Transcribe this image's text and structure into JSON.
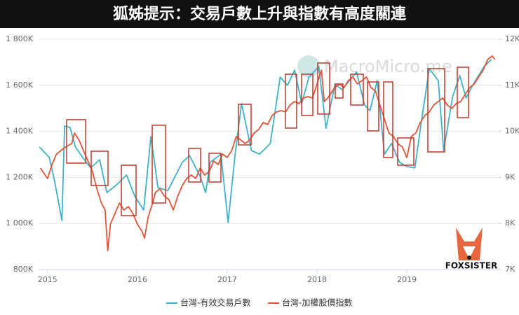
{
  "chart_data": {
    "type": "line",
    "title": "狐姊提示：交易戶數上升與指數有高度關連",
    "watermark": "MacroMicro.me",
    "logo_text": "FOXSISTER",
    "xlim": [
      2014.9,
      2020.03
    ],
    "xticks": [
      2015,
      2016,
      2017,
      2018,
      2019
    ],
    "ylim": [
      800000,
      1800000
    ],
    "yticks": [
      {
        "value": 800000,
        "label": "800K"
      },
      {
        "value": 1000000,
        "label": "1 000K"
      },
      {
        "value": 1200000,
        "label": "1 200K"
      },
      {
        "value": 1400000,
        "label": "1 400K"
      },
      {
        "value": 1600000,
        "label": "1 600K"
      },
      {
        "value": 1800000,
        "label": "1 800K"
      }
    ],
    "y2lim": [
      7000,
      12000
    ],
    "y2ticks": [
      {
        "value": 7000,
        "label": "7K"
      },
      {
        "value": 8000,
        "label": "8K"
      },
      {
        "value": 9000,
        "label": "9K"
      },
      {
        "value": 10000,
        "label": "10K"
      },
      {
        "value": 11000,
        "label": "11K"
      },
      {
        "value": 12000,
        "label": "12K"
      }
    ],
    "grid": true,
    "legend": "bottom",
    "series": [
      {
        "name": "台灣-有效交易戶數",
        "color": "#3fb1c8",
        "x": [
          2014.91,
          2015.02,
          2015.08,
          2015.16,
          2015.19,
          2015.25,
          2015.31,
          2015.41,
          2015.48,
          2015.58,
          2015.66,
          2015.76,
          2015.88,
          2015.97,
          2016.07,
          2016.15,
          2016.23,
          2016.34,
          2016.5,
          2016.58,
          2016.7,
          2016.76,
          2016.81,
          2016.93,
          2017.01,
          2017.09,
          2017.16,
          2017.27,
          2017.36,
          2017.48,
          2017.59,
          2017.67,
          2017.75,
          2017.83,
          2017.91,
          2018.02,
          2018.1,
          2018.2,
          2018.28,
          2018.36,
          2018.44,
          2018.53,
          2018.59,
          2018.67,
          2018.75,
          2018.83,
          2018.92,
          2019.0,
          2019.09,
          2019.16,
          2019.25,
          2019.35,
          2019.41,
          2019.51,
          2019.59,
          2019.66,
          2019.74,
          2019.86,
          2019.94
        ],
        "values": [
          1332000,
          1286000,
          1180000,
          1013000,
          1423000,
          1417000,
          1332000,
          1277000,
          1241000,
          1277000,
          1134000,
          1165000,
          1210000,
          1119000,
          1058000,
          1377000,
          1155000,
          1143000,
          1265000,
          1295000,
          1204000,
          1134000,
          1265000,
          1301000,
          1004000,
          1307000,
          1520000,
          1316000,
          1301000,
          1347000,
          1636000,
          1599000,
          1666000,
          1520000,
          1636000,
          1681000,
          1414000,
          1605000,
          1581000,
          1620000,
          1657000,
          1514000,
          1490000,
          1620000,
          1301000,
          1347000,
          1265000,
          1247000,
          1241000,
          1438000,
          1672000,
          1620000,
          1316000,
          1551000,
          1642000,
          1545000,
          1605000,
          1681000,
          1712000
        ]
      },
      {
        "name": "台灣-加權股價指數",
        "color": "#e2553a",
        "axis": "y2",
        "x": [
          2014.92,
          2015.0,
          2015.05,
          2015.1,
          2015.15,
          2015.2,
          2015.27,
          2015.3,
          2015.35,
          2015.4,
          2015.45,
          2015.5,
          2015.55,
          2015.6,
          2015.64,
          2015.67,
          2015.7,
          2015.75,
          2015.8,
          2015.85,
          2015.9,
          2015.95,
          2016.0,
          2016.05,
          2016.08,
          2016.12,
          2016.17,
          2016.2,
          2016.25,
          2016.3,
          2016.35,
          2016.4,
          2016.45,
          2016.5,
          2016.55,
          2016.6,
          2016.65,
          2016.7,
          2016.75,
          2016.8,
          2016.85,
          2016.9,
          2016.95,
          2017.0,
          2017.05,
          2017.1,
          2017.15,
          2017.2,
          2017.25,
          2017.3,
          2017.35,
          2017.4,
          2017.45,
          2017.5,
          2017.55,
          2017.6,
          2017.65,
          2017.7,
          2017.75,
          2017.8,
          2017.85,
          2017.9,
          2017.95,
          2018.0,
          2018.05,
          2018.08,
          2018.12,
          2018.17,
          2018.2,
          2018.25,
          2018.3,
          2018.35,
          2018.4,
          2018.45,
          2018.5,
          2018.55,
          2018.6,
          2018.65,
          2018.7,
          2018.75,
          2018.8,
          2018.85,
          2018.9,
          2018.95,
          2019.0,
          2019.05,
          2019.1,
          2019.15,
          2019.2,
          2019.25,
          2019.3,
          2019.35,
          2019.4,
          2019.45,
          2019.5,
          2019.55,
          2019.6,
          2019.65,
          2019.7,
          2019.75,
          2019.8,
          2019.85,
          2019.9,
          2019.95,
          2019.98
        ],
        "values": [
          9203,
          8975,
          9280,
          9507,
          9583,
          9659,
          9735,
          9963,
          9811,
          9583,
          9355,
          9127,
          8747,
          8443,
          8291,
          7410,
          7987,
          8215,
          8443,
          8291,
          8367,
          8215,
          7987,
          7835,
          7683,
          8139,
          8443,
          8671,
          8747,
          8595,
          8519,
          8291,
          8595,
          8823,
          8975,
          9051,
          8975,
          9203,
          9051,
          9127,
          9355,
          9279,
          9507,
          9431,
          9583,
          9887,
          9811,
          9735,
          9811,
          9963,
          10039,
          10191,
          10146,
          10343,
          10419,
          10450,
          10419,
          10571,
          10647,
          10602,
          10723,
          10754,
          10723,
          11027,
          11331,
          10647,
          10723,
          10875,
          10951,
          11027,
          10951,
          11103,
          11179,
          11027,
          11103,
          11179,
          10951,
          10875,
          10571,
          10267,
          9963,
          9887,
          9735,
          9659,
          9431,
          9887,
          9963,
          10191,
          10343,
          10419,
          10571,
          10647,
          10723,
          10571,
          10495,
          10602,
          10647,
          10799,
          10951,
          11027,
          11179,
          11331,
          11559,
          11635,
          11559
        ]
      }
    ]
  }
}
